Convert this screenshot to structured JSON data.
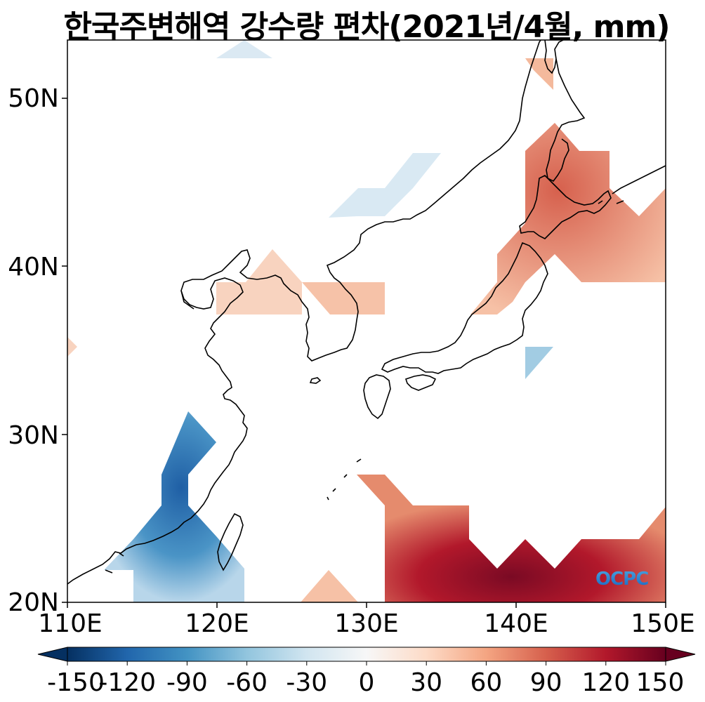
{
  "title": "한국주변해역 강수량 편차(2021년/4월, mm)",
  "map": {
    "lon_range": [
      110,
      150
    ],
    "lat_range": [
      20,
      53.5
    ],
    "x_ticks": [
      "110E",
      "120E",
      "130E",
      "140E",
      "150E"
    ],
    "y_ticks": [
      "20N",
      "30N",
      "40N",
      "50N"
    ],
    "grid": false
  },
  "colorbar": {
    "labels": [
      "-150",
      "-120",
      "-90",
      "-60",
      "-30",
      "0",
      "30",
      "60",
      "90",
      "120",
      "150"
    ],
    "range": [
      -150,
      150
    ],
    "colormap": "RdBu_r",
    "extend": "both",
    "low_color": "#053061",
    "mid_color": "#f7f7f7",
    "high_color": "#67001f"
  },
  "anomaly_regions": [
    {
      "name": "north-sakhalin",
      "value": 40
    },
    {
      "name": "hokkaido-tohoku",
      "value": 65
    },
    {
      "name": "east-sea-korea",
      "value": 35
    },
    {
      "name": "yellow-sea-north",
      "value": 25
    },
    {
      "name": "northwest-pacific-south",
      "value": 110
    },
    {
      "name": "south-china",
      "value": -100
    },
    {
      "name": "manchuria",
      "value": -15
    },
    {
      "name": "off-boso",
      "value": -45
    }
  ],
  "logo": {
    "text": "OCPC"
  }
}
